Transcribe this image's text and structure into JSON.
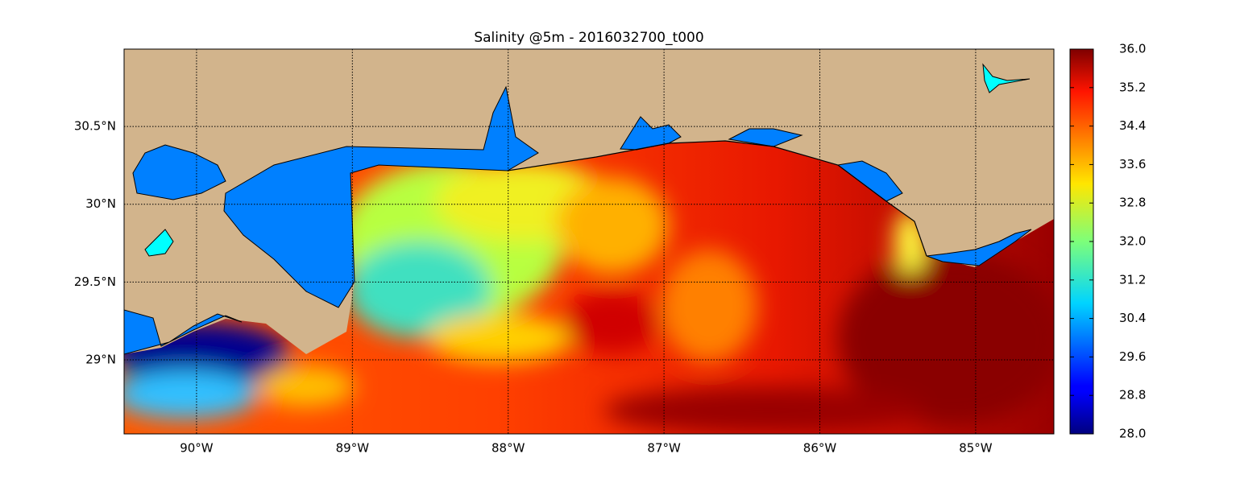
{
  "title": "Salinity @5m - 2016032700_t000",
  "map": {
    "lon_range": [
      -90.465,
      -84.498
    ],
    "lat_range": [
      28.524,
      30.997
    ],
    "lon_ticks": [
      {
        "value": -90,
        "label": "90°W"
      },
      {
        "value": -89,
        "label": "89°W"
      },
      {
        "value": -88,
        "label": "88°W"
      },
      {
        "value": -87,
        "label": "87°W"
      },
      {
        "value": -86,
        "label": "86°W"
      },
      {
        "value": -85,
        "label": "85°W"
      }
    ],
    "lat_ticks": [
      {
        "value": 29,
        "label": "29°N"
      },
      {
        "value": 29.5,
        "label": "29.5°N"
      },
      {
        "value": 30,
        "label": "30°N"
      },
      {
        "value": 30.5,
        "label": "30.5°N"
      }
    ],
    "grid": true
  },
  "colorbar": {
    "range": [
      28,
      36
    ],
    "ticks": [
      {
        "value": 28,
        "label": "28.0"
      },
      28.8,
      29.6,
      30.4,
      31.2,
      {
        "value": 32,
        "label": "32.0"
      },
      32.8,
      33.6,
      34.4,
      35.2,
      {
        "value": 36,
        "label": "36.0"
      }
    ]
  }
}
